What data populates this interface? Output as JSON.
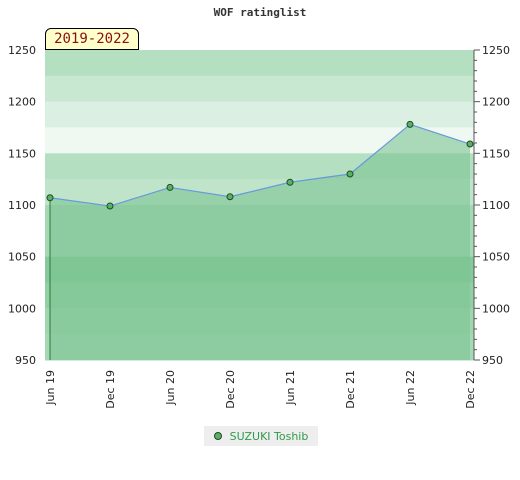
{
  "chart_data": {
    "type": "area",
    "title": "WOF ratinglist",
    "period_label": "2019-2022",
    "categories": [
      "Jun 19",
      "Dec 19",
      "Jun 20",
      "Dec 20",
      "Jun 21",
      "Dec 21",
      "Jun 22",
      "Dec 22"
    ],
    "series": [
      {
        "name": "SUZUKI Toshib",
        "values": [
          1107,
          1099,
          1117,
          1108,
          1122,
          1130,
          1178,
          1159
        ]
      }
    ],
    "ylim": [
      950,
      1250
    ],
    "yticks": [
      950,
      1000,
      1050,
      1100,
      1150,
      1200,
      1250
    ],
    "legend_position": "bottom",
    "colors": {
      "line": "#6699dd",
      "area": "#7cc492",
      "marker": "#5cae6a",
      "band_dark": "#7cc492",
      "band_light": "#dff0e4"
    }
  }
}
